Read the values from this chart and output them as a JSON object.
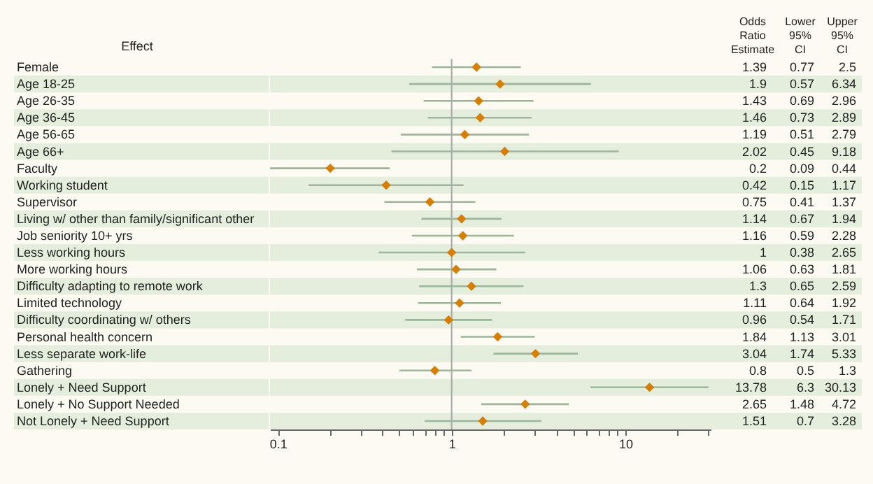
{
  "chart_data": {
    "type": "scatter",
    "orientation": "horizontal",
    "ylabel": "Effect",
    "annotations": [
      "Odds Ratio Estimate",
      "Lower 95% CI",
      "Upper 95% CI",
      "0.77",
      "2.5",
      "0.57",
      "6.34",
      "0.69",
      "2.96",
      "0.73",
      "2.89",
      "0.51",
      "2.79",
      "0.45",
      "9.18",
      "0.09",
      "0.44",
      "0.15",
      "1.17",
      "0.41",
      "1.37",
      "0.67",
      "1.94",
      "0.59",
      "2.28",
      "0.38",
      "2.65",
      "0.63",
      "1.81",
      "0.65",
      "2.59",
      "0.64",
      "1.92",
      "0.54",
      "1.71",
      "1.13",
      "3.01",
      "1.74",
      "5.33",
      "0.5",
      "1.3",
      "6.3",
      "30.13",
      "1.48",
      "4.72",
      "0.7",
      "3.28"
    ],
    "categories": [
      "Female",
      "Age 18-25",
      "Age 26-35",
      "Age 36-45",
      "Age 56-65",
      "Age 66+",
      "Faculty",
      "Working student",
      "Supervisor",
      "Living w/ other than family/significant other",
      "Job seniority 10+ yrs",
      "Less working hours",
      "More working hours",
      "Difficulty adapting to remote work",
      "Limited technology",
      "Difficulty coordinating w/ others",
      "Personal health concern",
      "Less separate work-life",
      "Gathering",
      "Lonely + Need Support",
      "Lonely + No Support Needed",
      "Not Lonely + Need Support"
    ],
    "series": [
      {
        "color": "#d37f0a",
        "values": [
          1.39,
          1.9,
          1.43,
          1.46,
          1.19,
          2.02,
          0.2,
          0.42,
          0.75,
          1.14,
          1.16,
          1,
          1.06,
          1.3,
          1.11,
          0.96,
          1.84,
          3.04,
          0.8,
          13.78,
          2.65,
          1.51
        ],
        "errors": [
          [
            0.77,
            2.5
          ],
          [
            0.57,
            6.34
          ],
          [
            0.69,
            2.96
          ],
          [
            0.73,
            2.89
          ],
          [
            0.51,
            2.79
          ],
          [
            0.45,
            9.18
          ],
          [
            0.09,
            0.44
          ],
          [
            0.15,
            1.17
          ],
          [
            0.41,
            1.37
          ],
          [
            0.67,
            1.94
          ],
          [
            0.59,
            2.28
          ],
          [
            0.38,
            2.65
          ],
          [
            0.63,
            1.81
          ],
          [
            0.65,
            2.59
          ],
          [
            0.64,
            1.92
          ],
          [
            0.54,
            1.71
          ],
          [
            1.13,
            3.01
          ],
          [
            1.74,
            5.33
          ],
          [
            0.5,
            1.3
          ],
          [
            6.3,
            30.13
          ],
          [
            1.48,
            4.72
          ],
          [
            0.7,
            3.28
          ]
        ]
      }
    ],
    "xlim": [
      0.09,
      31
    ],
    "xticks": [
      0.1,
      {
        "value": 0.2,
        "label": null
      },
      {
        "value": 0.3,
        "label": null
      },
      {
        "value": 0.4,
        "label": null
      },
      {
        "value": 0.5,
        "label": null
      },
      {
        "value": 0.6,
        "label": null
      },
      {
        "value": 0.7,
        "label": null
      },
      {
        "value": 0.8,
        "label": null
      },
      {
        "value": 0.9,
        "label": null
      },
      1,
      {
        "value": 2,
        "label": null
      },
      {
        "value": 3,
        "label": null
      },
      {
        "value": 4,
        "label": null
      },
      {
        "value": 5,
        "label": null
      },
      {
        "value": 6,
        "label": null
      },
      {
        "value": 7,
        "label": null
      },
      {
        "value": 8,
        "label": null
      },
      {
        "value": 9,
        "label": null
      },
      10,
      {
        "value": 20,
        "label": null
      },
      {
        "value": 30,
        "label": null
      }
    ],
    "log": "x",
    "grid": false,
    "marker": "diamond",
    "data_labels": true,
    "ref_lines": [
      {
        "axis": "x",
        "value": 1,
        "color": "#a8a8a8"
      }
    ]
  }
}
